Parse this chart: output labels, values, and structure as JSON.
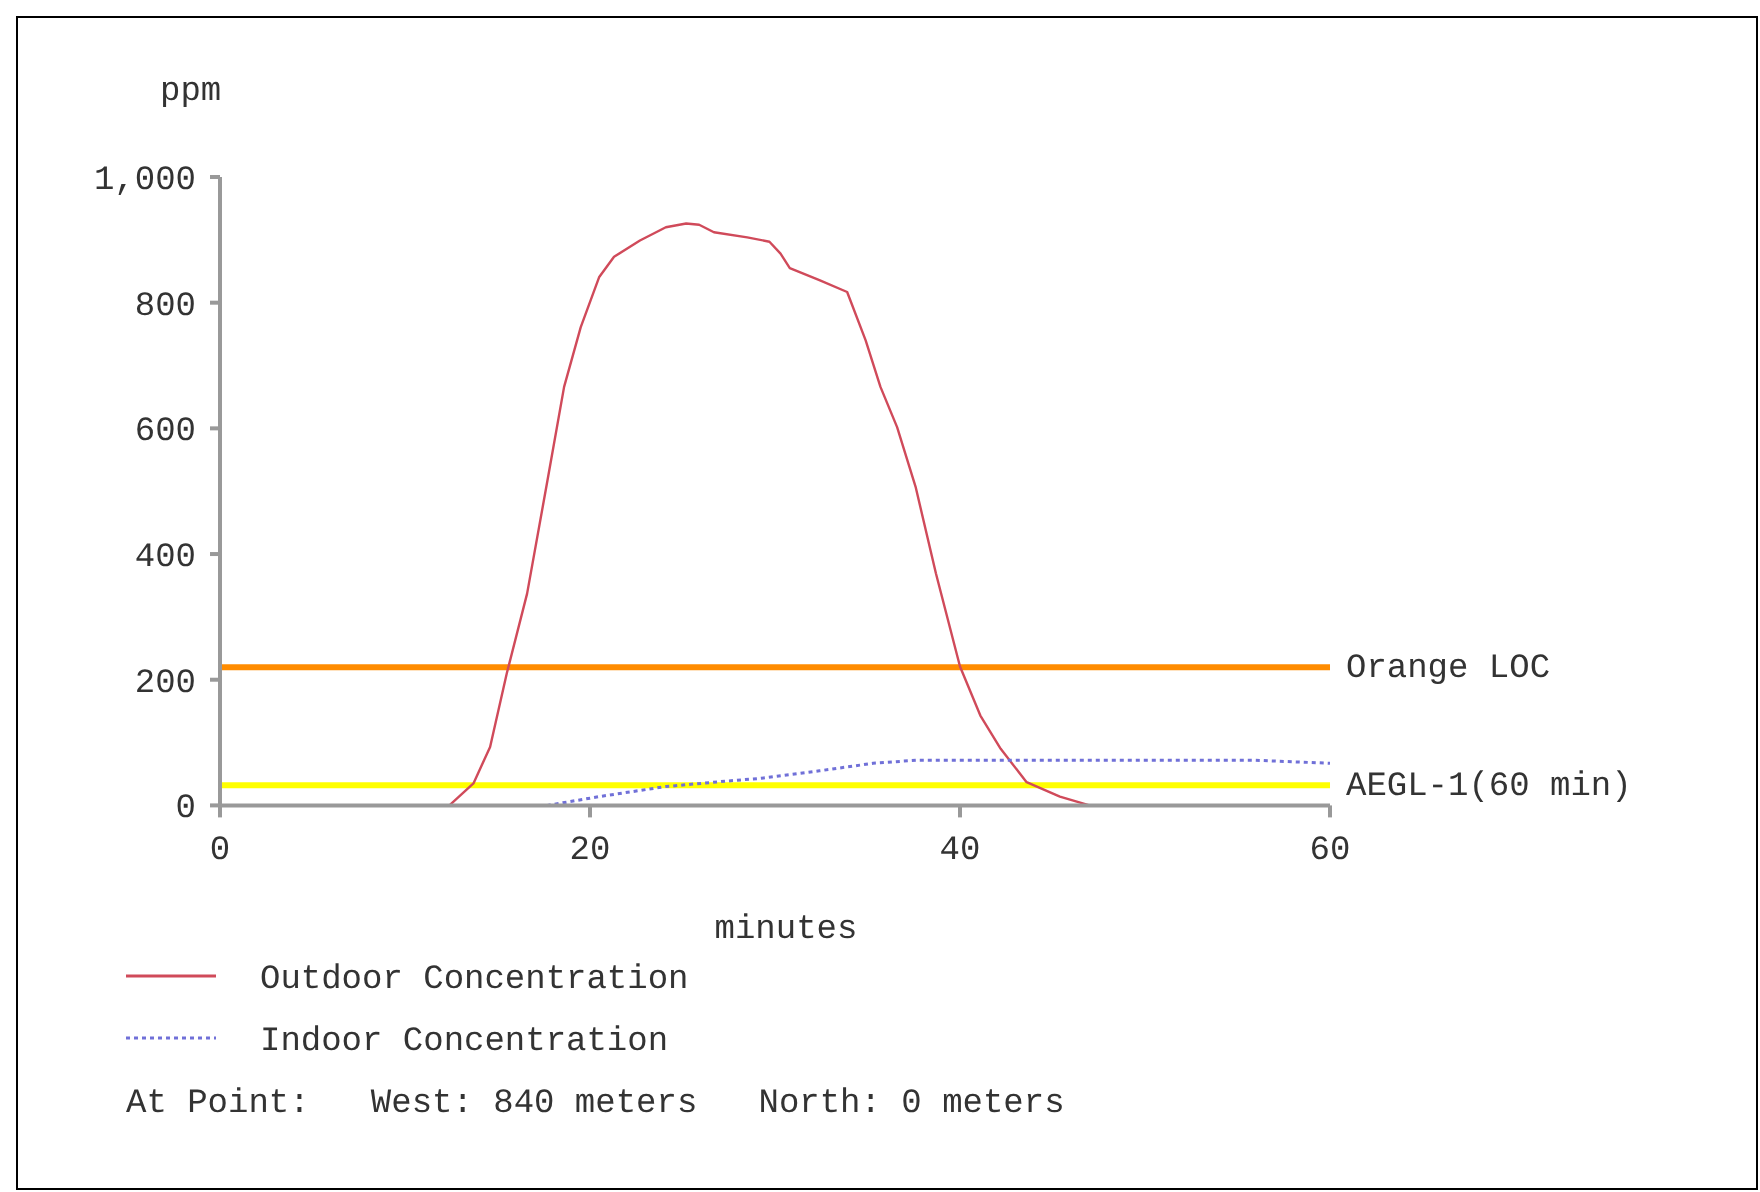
{
  "chart_data": {
    "type": "line",
    "xlabel": "minutes",
    "ylabel": "ppm",
    "xlim": [
      0,
      60
    ],
    "xticks": [
      0,
      20,
      40,
      60
    ],
    "ylim": [
      0,
      1000
    ],
    "yticks": [
      0,
      200,
      400,
      600,
      800,
      {
        "value": 1000,
        "label": "1,000"
      }
    ],
    "grid": false,
    "legend": "bottom",
    "marker": "none",
    "series": [
      {
        "name": "Outdoor Concentration",
        "color": "#d04a5a",
        "line_style": "solid",
        "x": [
          12.4,
          13.7,
          14.6,
          15.5,
          16.6,
          17.7,
          18.6,
          19.5,
          20.5,
          21.3,
          22.7,
          24.1,
          25.2,
          25.9,
          26.7,
          28.5,
          29.7,
          30.3,
          30.8,
          32.4,
          33.9,
          34.9,
          35.7,
          36.6,
          37.6,
          38.7,
          40,
          41.1,
          42.2,
          43.6,
          45.4,
          47
        ],
        "values": [
          0,
          35,
          93,
          210,
          337,
          517,
          666,
          761,
          841,
          873,
          899,
          920,
          926,
          924,
          912,
          904,
          897,
          878,
          855,
          836,
          817,
          740,
          666,
          602,
          507,
          369,
          221,
          143,
          90,
          37,
          14,
          0
        ]
      },
      {
        "name": "Indoor Concentration",
        "color": "#7070d8",
        "line_style": "dotted",
        "x": [
          15.5,
          17.7,
          20.5,
          24.1,
          27.9,
          29.2,
          32.4,
          35.3,
          37.7,
          45,
          55.9,
          60
        ],
        "values": [
          0,
          0,
          14,
          30,
          40,
          43,
          55,
          67,
          72,
          72,
          72,
          67
        ]
      }
    ],
    "ref_lines": [
      {
        "axis": "y",
        "value": 220,
        "label": "Orange LOC",
        "color": "#ff8c00"
      },
      {
        "axis": "y",
        "value": 32,
        "label": "AEGL-1(60 min)",
        "color": "#ffff00"
      }
    ],
    "annotations": [
      "At Point:   West: 840 meters   North: 0 meters"
    ]
  }
}
